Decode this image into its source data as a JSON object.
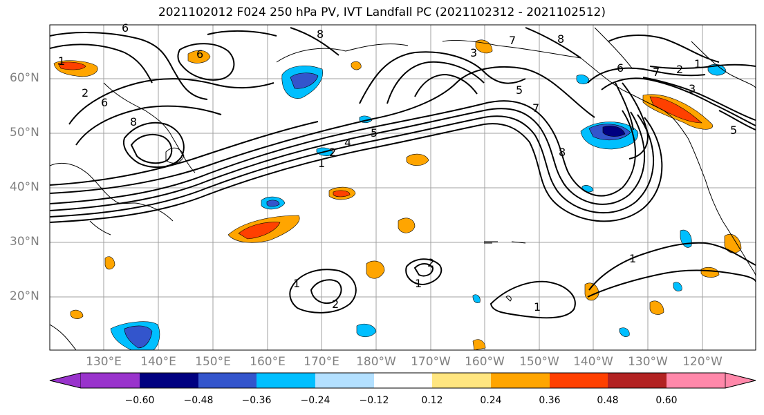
{
  "title": "2021102012 F024 250 hPa PV, IVT Landfall PC (2021102312 - 2021102512)",
  "lat_labels": [
    "60°N",
    "50°N",
    "40°N",
    "30°N",
    "20°N"
  ],
  "lon_labels": [
    "130°E",
    "140°E",
    "150°E",
    "160°E",
    "170°E",
    "180°W",
    "170°W",
    "160°W",
    "150°W",
    "140°W",
    "130°W",
    "120°W"
  ],
  "contour_labels": {
    "c1": "1",
    "c2": "2",
    "c3": "3",
    "c4": "4",
    "c5": "5",
    "c6": "6",
    "c7": "7",
    "c8": "8"
  },
  "colorbar": {
    "ticks": [
      "−0.60",
      "−0.48",
      "−0.36",
      "−0.24",
      "−0.12",
      "0.12",
      "0.24",
      "0.36",
      "0.48",
      "0.60"
    ],
    "colors": [
      "#9933cc",
      "#000080",
      "#3355cc",
      "#00bfff",
      "#b3e0ff",
      "#ffffff",
      "#ffe680",
      "#ffa500",
      "#ff4000",
      "#b22222",
      "#ff88aa"
    ]
  }
}
